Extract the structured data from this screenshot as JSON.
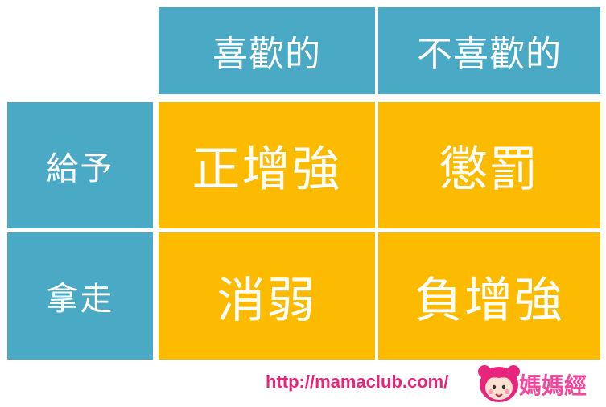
{
  "matrix": {
    "col_headers": [
      "喜歡的",
      "不喜歡的"
    ],
    "row_headers": [
      "給予",
      "拿走"
    ],
    "quadrants": {
      "give_liked": "正增強",
      "give_disliked": "懲罰",
      "take_liked": "消弱",
      "take_disliked": "負增強"
    }
  },
  "footer": {
    "url": "http://mamaclub.com/",
    "logo_text": "媽媽經"
  },
  "colors": {
    "header_teal": "#4aa9c4",
    "quadrant_gold": "#fdbb00",
    "url_pink": "#e8257c"
  }
}
